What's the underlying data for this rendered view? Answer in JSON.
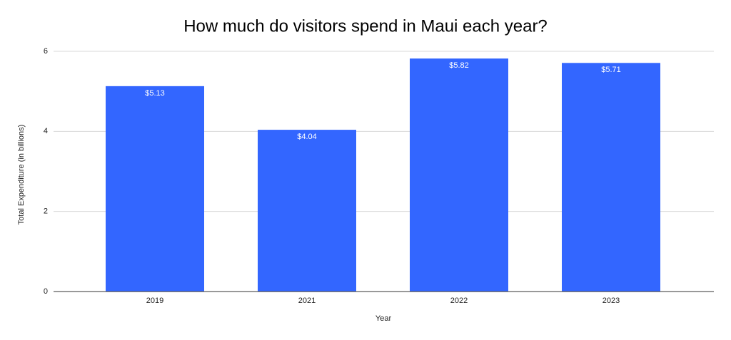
{
  "chart_data": {
    "type": "bar",
    "title": "How much do visitors spend in Maui each year?",
    "x_label": "Year",
    "y_label": "Total Expenditure (in billions)",
    "categories": [
      "2019",
      "2021",
      "2022",
      "2023"
    ],
    "values": [
      5.13,
      4.04,
      5.82,
      5.71
    ],
    "value_labels": [
      "$5.13",
      "$4.04",
      "$5.82",
      "$5.71"
    ],
    "color": "#3366ff",
    "ylim": [
      0,
      6
    ],
    "yticks": [
      0,
      2,
      4,
      6
    ],
    "grid": true
  }
}
